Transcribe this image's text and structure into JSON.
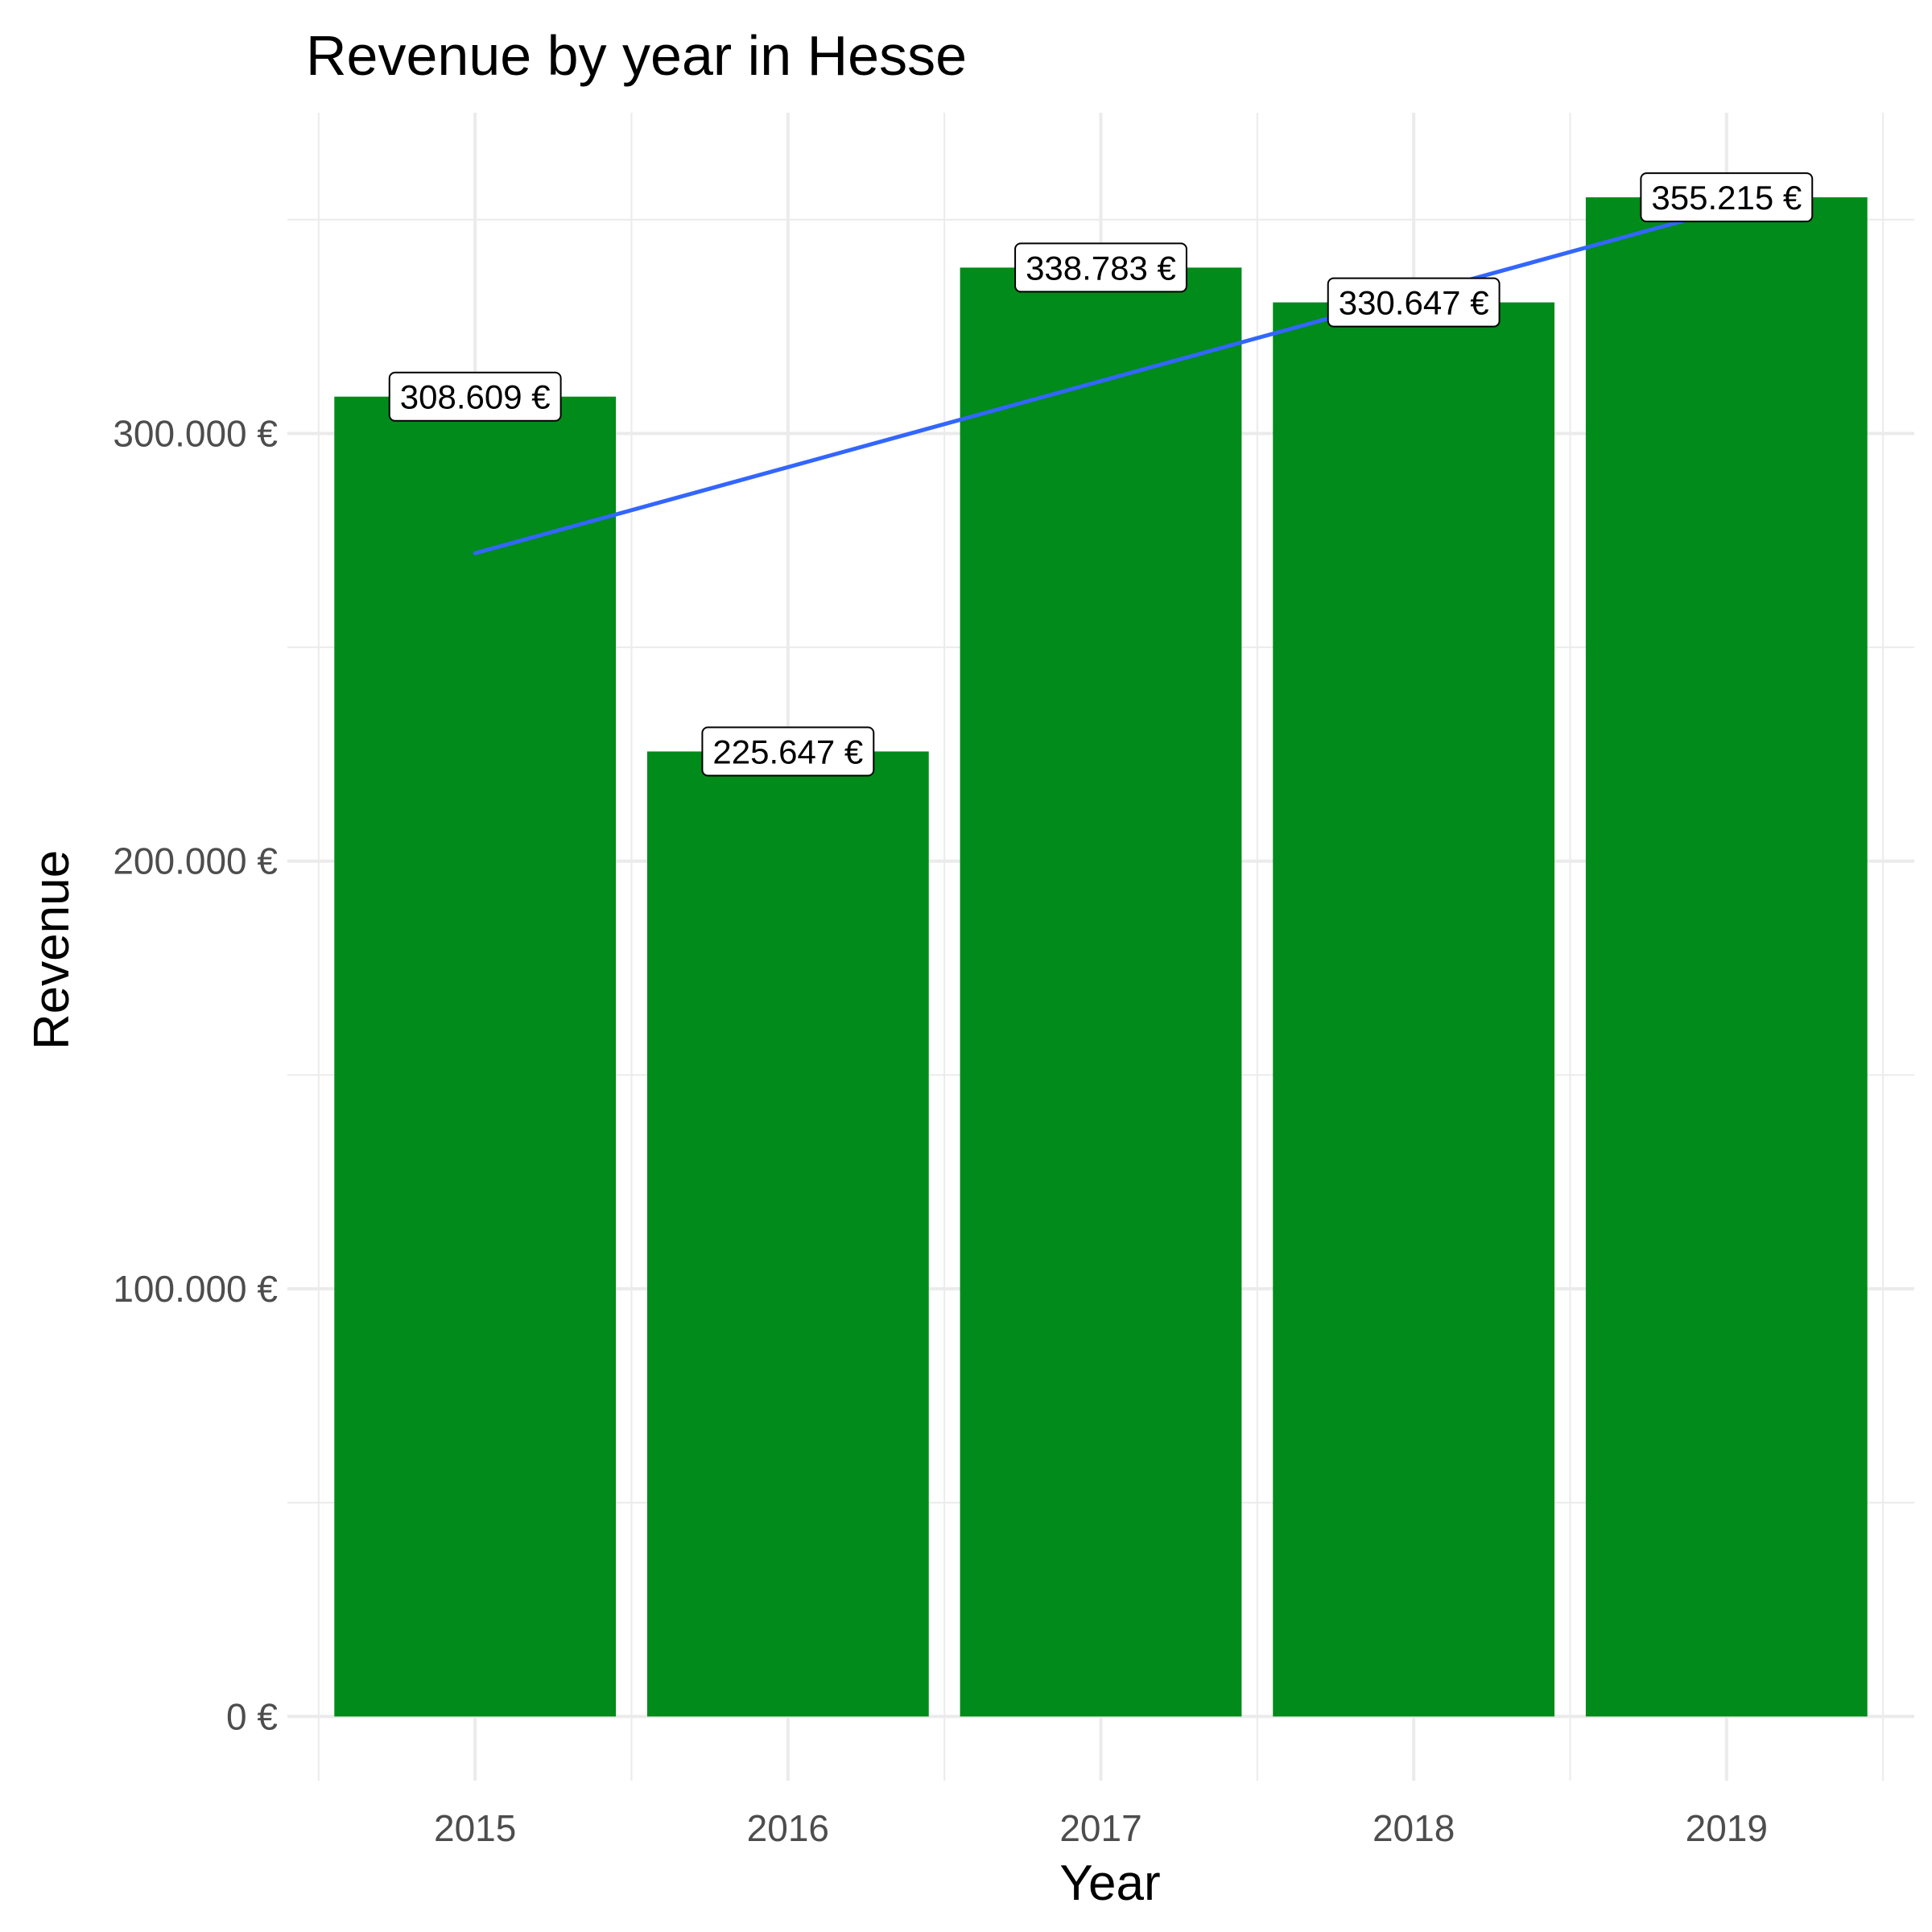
{
  "chart_data": {
    "type": "bar",
    "title": "Revenue by year in Hesse",
    "xlabel": "Year",
    "ylabel": "Revenue",
    "categories": [
      "2015",
      "2016",
      "2017",
      "2018",
      "2019"
    ],
    "values": [
      308609,
      225647,
      338783,
      330647,
      355215
    ],
    "value_labels": [
      "308.609 €",
      "225.647 €",
      "338.783 €",
      "330.647 €",
      "355.215 €"
    ],
    "ylim": [
      -15000,
      375000
    ],
    "yticks": [
      0,
      100000,
      200000,
      300000
    ],
    "ytick_labels": [
      "0 €",
      "100.000 €",
      "200.000 €",
      "300.000 €"
    ],
    "trend_line": {
      "type": "linear",
      "start": 272000,
      "end": 352500
    },
    "grid": true,
    "legend": "none",
    "colors": {
      "bar": "#008b1a",
      "trend": "#3366ff",
      "grid": "#ebebeb"
    }
  }
}
